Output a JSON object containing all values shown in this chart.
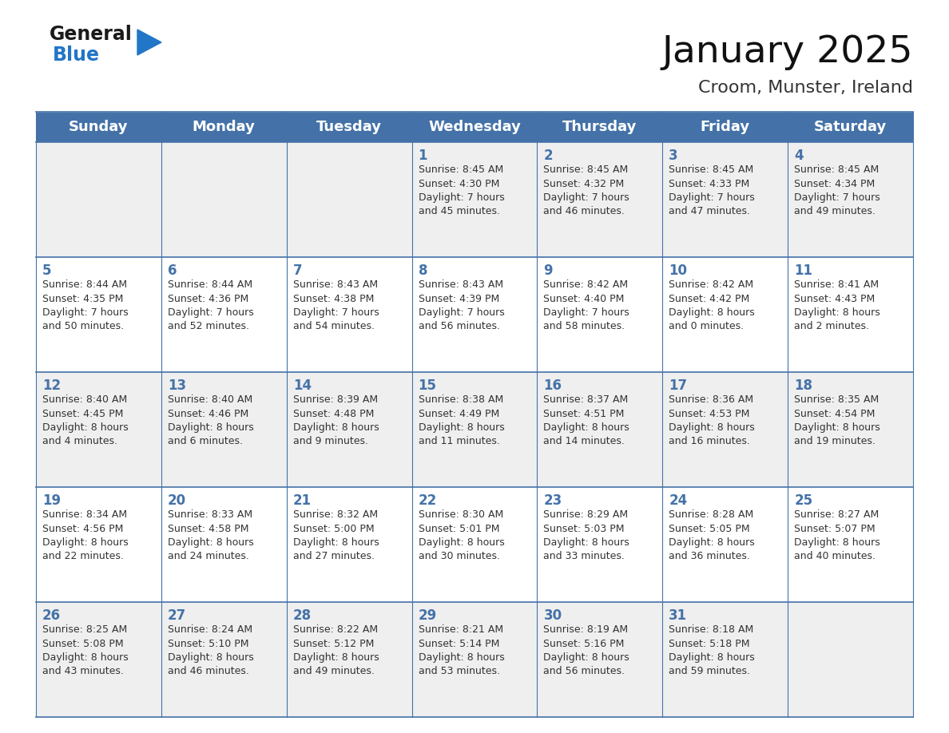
{
  "title": "January 2025",
  "subtitle": "Croom, Munster, Ireland",
  "header_color": "#4472a8",
  "header_text_color": "#ffffff",
  "cell_bg_even": "#efefef",
  "cell_bg_odd": "#ffffff",
  "day_names": [
    "Sunday",
    "Monday",
    "Tuesday",
    "Wednesday",
    "Thursday",
    "Friday",
    "Saturday"
  ],
  "text_color": "#333333",
  "line_color": "#4472a8",
  "calendar_data": [
    [
      null,
      null,
      null,
      {
        "day": 1,
        "sunrise": "Sunrise: 8:45 AM",
        "sunset": "Sunset: 4:30 PM",
        "daylight": "Daylight: 7 hours\nand 45 minutes."
      },
      {
        "day": 2,
        "sunrise": "Sunrise: 8:45 AM",
        "sunset": "Sunset: 4:32 PM",
        "daylight": "Daylight: 7 hours\nand 46 minutes."
      },
      {
        "day": 3,
        "sunrise": "Sunrise: 8:45 AM",
        "sunset": "Sunset: 4:33 PM",
        "daylight": "Daylight: 7 hours\nand 47 minutes."
      },
      {
        "day": 4,
        "sunrise": "Sunrise: 8:45 AM",
        "sunset": "Sunset: 4:34 PM",
        "daylight": "Daylight: 7 hours\nand 49 minutes."
      }
    ],
    [
      {
        "day": 5,
        "sunrise": "Sunrise: 8:44 AM",
        "sunset": "Sunset: 4:35 PM",
        "daylight": "Daylight: 7 hours\nand 50 minutes."
      },
      {
        "day": 6,
        "sunrise": "Sunrise: 8:44 AM",
        "sunset": "Sunset: 4:36 PM",
        "daylight": "Daylight: 7 hours\nand 52 minutes."
      },
      {
        "day": 7,
        "sunrise": "Sunrise: 8:43 AM",
        "sunset": "Sunset: 4:38 PM",
        "daylight": "Daylight: 7 hours\nand 54 minutes."
      },
      {
        "day": 8,
        "sunrise": "Sunrise: 8:43 AM",
        "sunset": "Sunset: 4:39 PM",
        "daylight": "Daylight: 7 hours\nand 56 minutes."
      },
      {
        "day": 9,
        "sunrise": "Sunrise: 8:42 AM",
        "sunset": "Sunset: 4:40 PM",
        "daylight": "Daylight: 7 hours\nand 58 minutes."
      },
      {
        "day": 10,
        "sunrise": "Sunrise: 8:42 AM",
        "sunset": "Sunset: 4:42 PM",
        "daylight": "Daylight: 8 hours\nand 0 minutes."
      },
      {
        "day": 11,
        "sunrise": "Sunrise: 8:41 AM",
        "sunset": "Sunset: 4:43 PM",
        "daylight": "Daylight: 8 hours\nand 2 minutes."
      }
    ],
    [
      {
        "day": 12,
        "sunrise": "Sunrise: 8:40 AM",
        "sunset": "Sunset: 4:45 PM",
        "daylight": "Daylight: 8 hours\nand 4 minutes."
      },
      {
        "day": 13,
        "sunrise": "Sunrise: 8:40 AM",
        "sunset": "Sunset: 4:46 PM",
        "daylight": "Daylight: 8 hours\nand 6 minutes."
      },
      {
        "day": 14,
        "sunrise": "Sunrise: 8:39 AM",
        "sunset": "Sunset: 4:48 PM",
        "daylight": "Daylight: 8 hours\nand 9 minutes."
      },
      {
        "day": 15,
        "sunrise": "Sunrise: 8:38 AM",
        "sunset": "Sunset: 4:49 PM",
        "daylight": "Daylight: 8 hours\nand 11 minutes."
      },
      {
        "day": 16,
        "sunrise": "Sunrise: 8:37 AM",
        "sunset": "Sunset: 4:51 PM",
        "daylight": "Daylight: 8 hours\nand 14 minutes."
      },
      {
        "day": 17,
        "sunrise": "Sunrise: 8:36 AM",
        "sunset": "Sunset: 4:53 PM",
        "daylight": "Daylight: 8 hours\nand 16 minutes."
      },
      {
        "day": 18,
        "sunrise": "Sunrise: 8:35 AM",
        "sunset": "Sunset: 4:54 PM",
        "daylight": "Daylight: 8 hours\nand 19 minutes."
      }
    ],
    [
      {
        "day": 19,
        "sunrise": "Sunrise: 8:34 AM",
        "sunset": "Sunset: 4:56 PM",
        "daylight": "Daylight: 8 hours\nand 22 minutes."
      },
      {
        "day": 20,
        "sunrise": "Sunrise: 8:33 AM",
        "sunset": "Sunset: 4:58 PM",
        "daylight": "Daylight: 8 hours\nand 24 minutes."
      },
      {
        "day": 21,
        "sunrise": "Sunrise: 8:32 AM",
        "sunset": "Sunset: 5:00 PM",
        "daylight": "Daylight: 8 hours\nand 27 minutes."
      },
      {
        "day": 22,
        "sunrise": "Sunrise: 8:30 AM",
        "sunset": "Sunset: 5:01 PM",
        "daylight": "Daylight: 8 hours\nand 30 minutes."
      },
      {
        "day": 23,
        "sunrise": "Sunrise: 8:29 AM",
        "sunset": "Sunset: 5:03 PM",
        "daylight": "Daylight: 8 hours\nand 33 minutes."
      },
      {
        "day": 24,
        "sunrise": "Sunrise: 8:28 AM",
        "sunset": "Sunset: 5:05 PM",
        "daylight": "Daylight: 8 hours\nand 36 minutes."
      },
      {
        "day": 25,
        "sunrise": "Sunrise: 8:27 AM",
        "sunset": "Sunset: 5:07 PM",
        "daylight": "Daylight: 8 hours\nand 40 minutes."
      }
    ],
    [
      {
        "day": 26,
        "sunrise": "Sunrise: 8:25 AM",
        "sunset": "Sunset: 5:08 PM",
        "daylight": "Daylight: 8 hours\nand 43 minutes."
      },
      {
        "day": 27,
        "sunrise": "Sunrise: 8:24 AM",
        "sunset": "Sunset: 5:10 PM",
        "daylight": "Daylight: 8 hours\nand 46 minutes."
      },
      {
        "day": 28,
        "sunrise": "Sunrise: 8:22 AM",
        "sunset": "Sunset: 5:12 PM",
        "daylight": "Daylight: 8 hours\nand 49 minutes."
      },
      {
        "day": 29,
        "sunrise": "Sunrise: 8:21 AM",
        "sunset": "Sunset: 5:14 PM",
        "daylight": "Daylight: 8 hours\nand 53 minutes."
      },
      {
        "day": 30,
        "sunrise": "Sunrise: 8:19 AM",
        "sunset": "Sunset: 5:16 PM",
        "daylight": "Daylight: 8 hours\nand 56 minutes."
      },
      {
        "day": 31,
        "sunrise": "Sunrise: 8:18 AM",
        "sunset": "Sunset: 5:18 PM",
        "daylight": "Daylight: 8 hours\nand 59 minutes."
      },
      null
    ]
  ],
  "logo_general_color": "#1a1a1a",
  "logo_blue_color": "#2176c7",
  "title_fontsize": 34,
  "subtitle_fontsize": 16,
  "header_fontsize": 13,
  "day_num_fontsize": 12,
  "cell_text_fontsize": 9
}
